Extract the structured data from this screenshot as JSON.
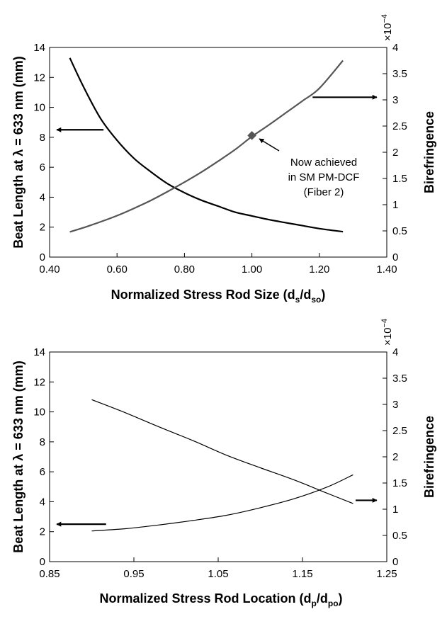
{
  "chart_data": [
    {
      "type": "line",
      "title": "",
      "xlabel": "Normalized Stress Rod Size (ds/dso)",
      "xlabel_parts": {
        "main": "Normalized Stress Rod Size (d",
        "sub1": "s",
        "mid": "/d",
        "sub2": "so",
        "end": ")"
      },
      "ylabel": "Beat Length at λ = 633 nm (mm)",
      "y2label": "Birefringence",
      "y2_multiplier": "×10−4",
      "y2_multiplier_parts": {
        "base": "×10",
        "exp": "−4"
      },
      "xlim": [
        0.4,
        1.4
      ],
      "ylim": [
        0,
        14
      ],
      "y2lim": [
        0,
        4
      ],
      "xticks": [
        0.4,
        0.6,
        0.8,
        1.0,
        1.2,
        1.4
      ],
      "xtick_labels": [
        "0.40",
        "0.60",
        "0.80",
        "1.00",
        "1.20",
        "1.40"
      ],
      "yticks": [
        0,
        2,
        4,
        6,
        8,
        10,
        12,
        14
      ],
      "ytick_labels": [
        "0",
        "2",
        "4",
        "6",
        "8",
        "10",
        "12",
        "14"
      ],
      "y2ticks": [
        0,
        0.5,
        1,
        1.5,
        2,
        2.5,
        3,
        3.5,
        4
      ],
      "y2tick_labels": [
        "0",
        "0.5",
        "1",
        "1.5",
        "2",
        "2.5",
        "3",
        "3.5",
        "4"
      ],
      "series": [
        {
          "name": "Beat Length",
          "axis": "left",
          "color": "#000000",
          "x": [
            0.46,
            0.5,
            0.55,
            0.6,
            0.65,
            0.7,
            0.75,
            0.8,
            0.85,
            0.9,
            0.95,
            1.0,
            1.05,
            1.1,
            1.15,
            1.2,
            1.27
          ],
          "y": [
            13.3,
            11.4,
            9.3,
            7.8,
            6.6,
            5.7,
            4.9,
            4.3,
            3.8,
            3.4,
            3.0,
            2.75,
            2.5,
            2.3,
            2.1,
            1.9,
            1.7
          ]
        },
        {
          "name": "Birefringence",
          "axis": "right",
          "color": "#555555",
          "x": [
            0.46,
            0.5,
            0.55,
            0.6,
            0.65,
            0.7,
            0.75,
            0.8,
            0.85,
            0.9,
            0.95,
            1.0,
            1.05,
            1.1,
            1.15,
            1.2,
            1.27
          ],
          "y": [
            0.48,
            0.56,
            0.67,
            0.79,
            0.93,
            1.08,
            1.25,
            1.43,
            1.62,
            1.83,
            2.05,
            2.3,
            2.52,
            2.75,
            2.98,
            3.22,
            3.75
          ]
        }
      ],
      "marker": {
        "x": 1.0,
        "y": 2.32,
        "axis": "right",
        "color": "#555555"
      },
      "annotation_lines": [
        "Now achieved",
        "in SM PM-DCF",
        "(Fiber 2)"
      ],
      "axis_arrows": [
        {
          "points_to": "left",
          "from_x": 0.56,
          "y": 8.5
        },
        {
          "points_to": "right",
          "from_x": 1.18,
          "y": 3.05,
          "axis": "right"
        }
      ]
    },
    {
      "type": "line",
      "title": "",
      "xlabel": "Normalized Stress Rod Location (dp/dpo)",
      "xlabel_parts": {
        "main": "Normalized Stress Rod Location (d",
        "sub1": "p",
        "mid": "/d",
        "sub2": "po",
        "end": ")"
      },
      "ylabel": "Beat Length at λ = 633 nm (mm)",
      "y2label": "Birefringence",
      "y2_multiplier": "×10−4",
      "y2_multiplier_parts": {
        "base": "×10",
        "exp": "−4"
      },
      "xlim": [
        0.85,
        1.25
      ],
      "ylim": [
        0,
        14
      ],
      "y2lim": [
        0,
        4
      ],
      "xticks": [
        0.85,
        0.95,
        1.05,
        1.15,
        1.25
      ],
      "xtick_labels": [
        "0.85",
        "0.95",
        "1.05",
        "1.15",
        "1.25"
      ],
      "yticks": [
        0,
        2,
        4,
        6,
        8,
        10,
        12,
        14
      ],
      "ytick_labels": [
        "0",
        "2",
        "4",
        "6",
        "8",
        "10",
        "12",
        "14"
      ],
      "y2ticks": [
        0,
        0.5,
        1,
        1.5,
        2,
        2.5,
        3,
        3.5,
        4
      ],
      "y2tick_labels": [
        "0",
        "0.5",
        "1",
        "1.5",
        "2",
        "2.5",
        "3",
        "3.5",
        "4"
      ],
      "series": [
        {
          "name": "Beat Length",
          "axis": "left",
          "color": "#000000",
          "x": [
            0.9,
            0.94,
            0.98,
            1.02,
            1.06,
            1.1,
            1.14,
            1.18,
            1.21
          ],
          "y": [
            2.05,
            2.2,
            2.45,
            2.75,
            3.1,
            3.6,
            4.2,
            5.0,
            5.8
          ]
        },
        {
          "name": "Birefringence",
          "axis": "right",
          "color": "#000000",
          "x": [
            0.9,
            0.94,
            0.98,
            1.02,
            1.06,
            1.1,
            1.14,
            1.18,
            1.21
          ],
          "y": [
            3.09,
            2.84,
            2.57,
            2.31,
            2.03,
            1.79,
            1.56,
            1.3,
            1.11
          ]
        }
      ],
      "axis_arrows": [
        {
          "points_to": "left",
          "from_x": 0.917,
          "y": 2.5
        },
        {
          "points_to": "right",
          "from_x": 1.213,
          "y": 1.17,
          "axis": "right"
        }
      ]
    }
  ]
}
